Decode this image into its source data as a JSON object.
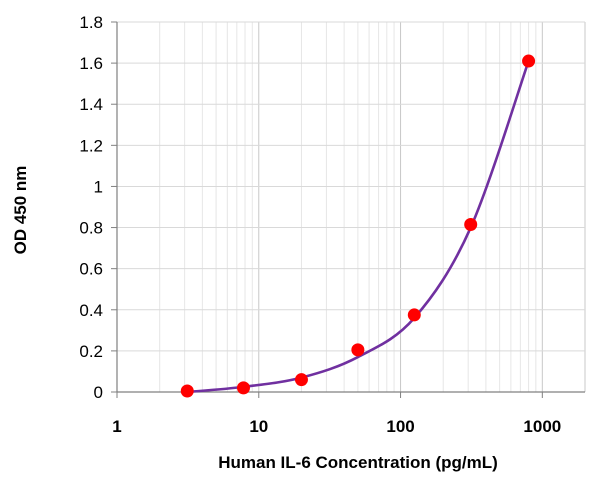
{
  "chart_data": {
    "type": "scatter",
    "title": "",
    "xlabel": "Human IL-6 Concentration (pg/mL)",
    "ylabel": "OD 450 nm",
    "x_scale": "log",
    "xlim": [
      1,
      2000
    ],
    "ylim": [
      0,
      1.8
    ],
    "x_ticks": [
      1,
      10,
      100,
      1000
    ],
    "x_tick_labels": [
      "1",
      "10",
      "100",
      "1000"
    ],
    "y_ticks": [
      0,
      0.2,
      0.4,
      0.6,
      0.8,
      1,
      1.2,
      1.4,
      1.6,
      1.8
    ],
    "y_tick_labels": [
      "0",
      "0.2",
      "0.4",
      "0.6",
      "0.8",
      "1",
      "1.2",
      "1.4",
      "1.6",
      "1.8"
    ],
    "grid": true,
    "legend": "none",
    "series": [
      {
        "marker": "circle",
        "color": "#ff0000",
        "x": [
          3.13,
          7.8,
          20,
          50,
          125,
          312.5,
          800
        ],
        "y": [
          0.005,
          0.02,
          0.06,
          0.205,
          0.375,
          0.815,
          1.61
        ]
      }
    ],
    "fit_curve": {
      "color": "#7030a0",
      "x": [
        3.13,
        7.8,
        20,
        50,
        125,
        312.5,
        800
      ],
      "y": [
        0.0,
        0.025,
        0.07,
        0.17,
        0.36,
        0.8,
        1.61
      ]
    }
  }
}
